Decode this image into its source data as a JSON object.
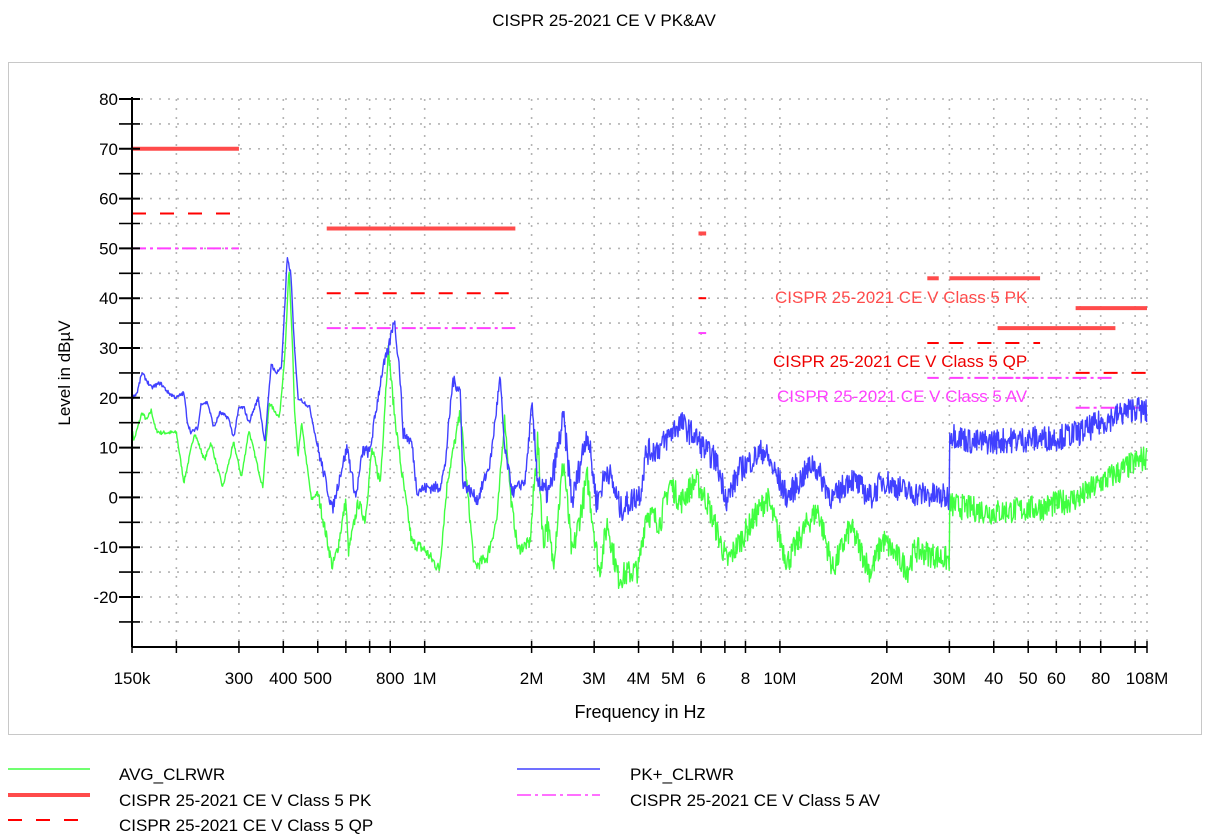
{
  "chart_data": {
    "type": "line",
    "title": "CISPR 25-2021 CE V PK&AV",
    "xlabel": "Frequency in Hz",
    "ylabel": "Level in dBµV",
    "x_scale": "log",
    "x_unit": "MHz",
    "xlim": [
      0.15,
      108
    ],
    "ylim": [
      -30,
      80
    ],
    "grid": true,
    "legend_position": "bottom",
    "y_ticks": [
      80,
      70,
      60,
      50,
      40,
      30,
      20,
      10,
      0,
      -10,
      -20
    ],
    "x_ticks": [
      {
        "f": 0.15,
        "label": "150k"
      },
      {
        "f": 0.2,
        "label": ""
      },
      {
        "f": 0.3,
        "label": "300"
      },
      {
        "f": 0.4,
        "label": "400"
      },
      {
        "f": 0.5,
        "label": "500"
      },
      {
        "f": 0.6,
        "label": ""
      },
      {
        "f": 0.7,
        "label": ""
      },
      {
        "f": 0.8,
        "label": "800"
      },
      {
        "f": 1,
        "label": "1M"
      },
      {
        "f": 2,
        "label": "2M"
      },
      {
        "f": 3,
        "label": "3M"
      },
      {
        "f": 4,
        "label": "4M"
      },
      {
        "f": 5,
        "label": "5M"
      },
      {
        "f": 6,
        "label": "6"
      },
      {
        "f": 7,
        "label": ""
      },
      {
        "f": 8,
        "label": "8"
      },
      {
        "f": 10,
        "label": "10M"
      },
      {
        "f": 20,
        "label": "20M"
      },
      {
        "f": 30,
        "label": "30M"
      },
      {
        "f": 40,
        "label": "40"
      },
      {
        "f": 50,
        "label": "50"
      },
      {
        "f": 60,
        "label": "60"
      },
      {
        "f": 70,
        "label": ""
      },
      {
        "f": 80,
        "label": "80"
      },
      {
        "f": 100,
        "label": ""
      },
      {
        "f": 108,
        "label": "108M"
      }
    ],
    "series": [
      {
        "name": "PK+_CLRWR",
        "color": "#4040ff",
        "style": "solid",
        "points": [
          [
            0.15,
            20
          ],
          [
            0.155,
            21
          ],
          [
            0.16,
            25
          ],
          [
            0.17,
            22
          ],
          [
            0.18,
            23
          ],
          [
            0.19,
            21
          ],
          [
            0.2,
            20
          ],
          [
            0.21,
            21
          ],
          [
            0.215,
            15
          ],
          [
            0.22,
            13
          ],
          [
            0.23,
            14
          ],
          [
            0.235,
            19
          ],
          [
            0.245,
            19
          ],
          [
            0.255,
            14
          ],
          [
            0.265,
            17
          ],
          [
            0.28,
            16
          ],
          [
            0.29,
            12
          ],
          [
            0.3,
            18
          ],
          [
            0.31,
            18
          ],
          [
            0.32,
            15
          ],
          [
            0.34,
            20
          ],
          [
            0.355,
            11
          ],
          [
            0.37,
            27
          ],
          [
            0.38,
            25
          ],
          [
            0.395,
            26
          ],
          [
            0.405,
            40
          ],
          [
            0.41,
            48
          ],
          [
            0.42,
            45
          ],
          [
            0.43,
            30
          ],
          [
            0.44,
            20
          ],
          [
            0.46,
            19
          ],
          [
            0.475,
            18
          ],
          [
            0.5,
            10
          ],
          [
            0.55,
            -2.5
          ],
          [
            0.58,
            5
          ],
          [
            0.605,
            10
          ],
          [
            0.64,
            0
          ],
          [
            0.67,
            9.5
          ],
          [
            0.7,
            9
          ],
          [
            0.735,
            19
          ],
          [
            0.76,
            25.5
          ],
          [
            0.79,
            29.6
          ],
          [
            0.82,
            36
          ],
          [
            0.85,
            25.6
          ],
          [
            0.87,
            13
          ],
          [
            0.92,
            11
          ],
          [
            0.95,
            1.5
          ],
          [
            1.03,
            2
          ],
          [
            1.1,
            2
          ],
          [
            1.14,
            6
          ],
          [
            1.2,
            23.5
          ],
          [
            1.26,
            21.5
          ],
          [
            1.28,
            3
          ],
          [
            1.41,
            -0.5
          ],
          [
            1.53,
            7
          ],
          [
            1.63,
            24
          ],
          [
            1.68,
            9.5
          ],
          [
            1.77,
            1
          ],
          [
            1.92,
            3.5
          ],
          [
            2.0,
            18
          ],
          [
            2.08,
            4
          ],
          [
            2.16,
            1
          ],
          [
            2.25,
            1
          ],
          [
            2.46,
            16
          ],
          [
            2.6,
            -1
          ],
          [
            2.87,
            13.5
          ],
          [
            3.05,
            -1
          ],
          [
            3.27,
            6
          ],
          [
            3.56,
            -2.5
          ],
          [
            4.05,
            1
          ],
          [
            4.2,
            9
          ],
          [
            4.6,
            10
          ],
          [
            5.0,
            13.5
          ],
          [
            5.25,
            15
          ],
          [
            5.8,
            12
          ],
          [
            6.25,
            9
          ],
          [
            6.6,
            7.5
          ],
          [
            7.1,
            -0.5
          ],
          [
            7.7,
            5.5
          ],
          [
            9.0,
            9.5
          ],
          [
            10.5,
            0
          ],
          [
            12.4,
            7
          ],
          [
            14.1,
            -0.5
          ],
          [
            15.8,
            4
          ],
          [
            18,
            0
          ],
          [
            19.5,
            3.5
          ],
          [
            22.9,
            1
          ],
          [
            29.7,
            0
          ],
          [
            30,
            13
          ],
          [
            35,
            11
          ],
          [
            45,
            11.5
          ],
          [
            60,
            12
          ],
          [
            70,
            13
          ],
          [
            80,
            15
          ],
          [
            100,
            18
          ],
          [
            108,
            17
          ]
        ]
      },
      {
        "name": "AVG_CLRWR",
        "color": "#40ff40",
        "style": "solid",
        "points": [
          [
            0.15,
            13.5
          ],
          [
            0.152,
            11.5
          ],
          [
            0.16,
            17
          ],
          [
            0.165,
            15.5
          ],
          [
            0.17,
            17.5
          ],
          [
            0.175,
            13.5
          ],
          [
            0.18,
            13
          ],
          [
            0.2,
            13
          ],
          [
            0.21,
            3
          ],
          [
            0.225,
            13
          ],
          [
            0.24,
            7.5
          ],
          [
            0.25,
            11
          ],
          [
            0.27,
            2
          ],
          [
            0.29,
            11
          ],
          [
            0.305,
            4
          ],
          [
            0.32,
            13.5
          ],
          [
            0.35,
            2
          ],
          [
            0.365,
            19
          ],
          [
            0.39,
            16
          ],
          [
            0.405,
            29.6
          ],
          [
            0.415,
            46
          ],
          [
            0.425,
            29.6
          ],
          [
            0.43,
            17.5
          ],
          [
            0.44,
            8
          ],
          [
            0.45,
            15
          ],
          [
            0.48,
            -0.5
          ],
          [
            0.5,
            1
          ],
          [
            0.55,
            -14
          ],
          [
            0.57,
            -10
          ],
          [
            0.6,
            -0.5
          ],
          [
            0.61,
            -11
          ],
          [
            0.65,
            -1
          ],
          [
            0.68,
            -4.5
          ],
          [
            0.71,
            9.5
          ],
          [
            0.75,
            3
          ],
          [
            0.79,
            30
          ],
          [
            0.82,
            17.5
          ],
          [
            0.86,
            5.5
          ],
          [
            0.92,
            -9
          ],
          [
            1.0,
            -10.5
          ],
          [
            1.1,
            -14.5
          ],
          [
            1.16,
            3.5
          ],
          [
            1.26,
            17
          ],
          [
            1.38,
            -14
          ],
          [
            1.5,
            -12
          ],
          [
            1.6,
            -4
          ],
          [
            1.68,
            16
          ],
          [
            1.75,
            -0.5
          ],
          [
            1.83,
            -10.5
          ],
          [
            1.98,
            -9
          ],
          [
            2.08,
            11.5
          ],
          [
            2.16,
            -10
          ],
          [
            2.2,
            -4.5
          ],
          [
            2.3,
            -13
          ],
          [
            2.46,
            7.5
          ],
          [
            2.6,
            -12
          ],
          [
            2.87,
            4
          ],
          [
            3.1,
            -15
          ],
          [
            3.27,
            -5
          ],
          [
            3.5,
            -16
          ],
          [
            4.0,
            -14.5
          ],
          [
            4.2,
            -3
          ],
          [
            4.6,
            -5
          ],
          [
            4.9,
            3
          ],
          [
            5.25,
            -1
          ],
          [
            5.8,
            3.5
          ],
          [
            6.25,
            -1
          ],
          [
            6.8,
            -9
          ],
          [
            7.1,
            -13
          ],
          [
            8.4,
            -4.5
          ],
          [
            9.2,
            0
          ],
          [
            10.5,
            -13
          ],
          [
            12,
            -5
          ],
          [
            12.8,
            -2.5
          ],
          [
            14.1,
            -14.5
          ],
          [
            15.8,
            -6
          ],
          [
            18,
            -15
          ],
          [
            19.5,
            -8.5
          ],
          [
            22.9,
            -14.5
          ],
          [
            24,
            -10.5
          ],
          [
            29.7,
            -12.5
          ],
          [
            30,
            -1.5
          ],
          [
            40,
            -3
          ],
          [
            55,
            -2
          ],
          [
            70,
            0
          ],
          [
            80,
            3
          ],
          [
            100,
            7
          ],
          [
            108,
            8
          ]
        ]
      }
    ],
    "limits": [
      {
        "name": "CISPR 25-2021 CE V Class 5 PK",
        "color": "#ff4b4b",
        "style": "solid",
        "segments": [
          [
            0.15,
            0.3,
            70
          ],
          [
            0.53,
            1.8,
            54
          ],
          [
            5.9,
            6.2,
            53
          ],
          [
            26,
            28,
            44
          ],
          [
            30,
            54,
            44
          ],
          [
            41,
            88,
            34
          ],
          [
            68,
            108,
            38
          ]
        ]
      },
      {
        "name": "CISPR 25-2021 CE V Class 5 QP",
        "color": "#ff0000",
        "style": "dashed",
        "segments": [
          [
            0.15,
            0.3,
            57
          ],
          [
            0.53,
            1.8,
            41
          ],
          [
            5.9,
            6.2,
            40
          ],
          [
            26,
            28,
            31
          ],
          [
            30,
            54,
            31
          ],
          [
            68,
            108,
            25
          ]
        ]
      },
      {
        "name": "CISPR 25-2021 CE V Class 5 AV",
        "color": "#ff40ff",
        "style": "dashdot",
        "segments": [
          [
            0.15,
            0.3,
            50
          ],
          [
            0.53,
            1.8,
            34
          ],
          [
            5.9,
            6.2,
            33
          ],
          [
            26,
            28,
            24
          ],
          [
            30,
            54,
            24
          ],
          [
            41,
            88,
            24
          ],
          [
            68,
            108,
            18
          ]
        ]
      }
    ],
    "annotations": [
      {
        "text": "CISPR 25-2021 CE V Class 5 PK",
        "color": "#ff4b4b"
      },
      {
        "text": "CISPR 25-2021 CE V Class 5 QP",
        "color": "#ee0000"
      },
      {
        "text": "CISPR 25-2021 CE V Class 5 AV",
        "color": "#ff40ff"
      }
    ]
  },
  "legend": [
    {
      "label": "AVG_CLRWR",
      "color": "#40ff40",
      "style": "solid"
    },
    {
      "label": "PK+_CLRWR",
      "color": "#4040ff",
      "style": "solid"
    },
    {
      "label": "CISPR 25-2021 CE V Class 5 PK",
      "color": "#ff4b4b",
      "style": "thick"
    },
    {
      "label": "CISPR 25-2021 CE V Class 5 AV",
      "color": "#ff40ff",
      "style": "dashdot"
    },
    {
      "label": "CISPR 25-2021 CE V Class 5 QP",
      "color": "#ff0000",
      "style": "dashed"
    }
  ]
}
